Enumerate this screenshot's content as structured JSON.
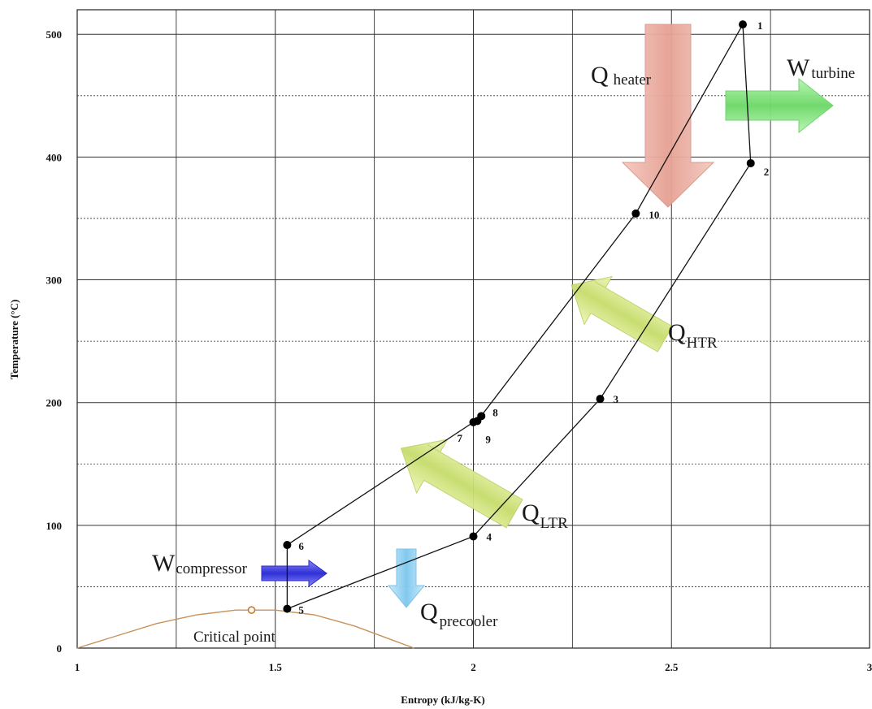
{
  "chart_data": {
    "type": "line",
    "xlabel": "Entropy (kJ/kg-K)",
    "ylabel": "Temperature (°C)",
    "xlim": [
      1,
      3
    ],
    "ylim": [
      0,
      520
    ],
    "xticks": [
      "1",
      "1.5",
      "2",
      "2.5",
      "3"
    ],
    "yticks": [
      "0",
      "100",
      "200",
      "300",
      "400",
      "500"
    ],
    "grid": true,
    "points": [
      {
        "id": "1",
        "s": 2.68,
        "T": 508
      },
      {
        "id": "2",
        "s": 2.7,
        "T": 395
      },
      {
        "id": "3",
        "s": 2.32,
        "T": 203
      },
      {
        "id": "4",
        "s": 2.0,
        "T": 91
      },
      {
        "id": "5",
        "s": 1.53,
        "T": 32
      },
      {
        "id": "6",
        "s": 1.53,
        "T": 84
      },
      {
        "id": "7",
        "s": 2.0,
        "T": 184
      },
      {
        "id": "8",
        "s": 2.02,
        "T": 189
      },
      {
        "id": "9",
        "s": 2.01,
        "T": 185
      },
      {
        "id": "10",
        "s": 2.41,
        "T": 354
      }
    ],
    "cycle_order": [
      "1",
      "2",
      "3",
      "4",
      "5",
      "6",
      "7",
      "8",
      "9",
      "10",
      "1"
    ],
    "saturation_dome": [
      {
        "s": 1.0,
        "T": 0
      },
      {
        "s": 1.1,
        "T": 10
      },
      {
        "s": 1.2,
        "T": 20
      },
      {
        "s": 1.3,
        "T": 27
      },
      {
        "s": 1.4,
        "T": 31
      },
      {
        "s": 1.44,
        "T": 31
      },
      {
        "s": 1.5,
        "T": 31
      },
      {
        "s": 1.6,
        "T": 27
      },
      {
        "s": 1.7,
        "T": 18
      },
      {
        "s": 1.8,
        "T": 6
      },
      {
        "s": 1.85,
        "T": 0
      }
    ],
    "critical_point": {
      "label": "Critical point",
      "s": 1.44,
      "T": 31
    },
    "annotations": [
      {
        "id": "q-heater",
        "main": "Q",
        "sub": "heater"
      },
      {
        "id": "w-turbine",
        "main": "W",
        "sub": "turbine"
      },
      {
        "id": "q-htr",
        "main": "Q",
        "sub": "HTR"
      },
      {
        "id": "q-ltr",
        "main": "Q",
        "sub": "LTR"
      },
      {
        "id": "w-compressor",
        "main": "W",
        "sub": "compressor"
      },
      {
        "id": "q-precooler",
        "main": "Q",
        "sub": "precooler"
      }
    ],
    "colors": {
      "cycle_line": "#111111",
      "dome": "#c8925a",
      "critical_marker": "#c87a2a",
      "heater_arrow": "#e8a79c",
      "turbine_arrow": "#7fe07a",
      "recuperator_arrow": "#cfe07a",
      "compressor_arrow": "#3a3ae0",
      "precooler_arrow": "#8fd0f0",
      "grid": "#333333"
    }
  }
}
